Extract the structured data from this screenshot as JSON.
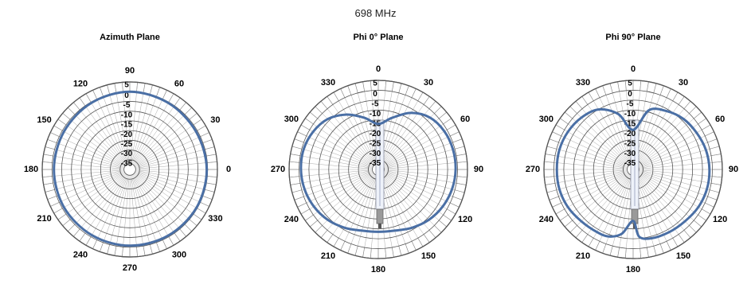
{
  "title": "698 MHz",
  "colors": {
    "trace": "#4a6fa5",
    "grid": "#aaaaaa",
    "ring_dark": "#555555",
    "center_fill": "#e6e6e6"
  },
  "chart_data": [
    {
      "type": "polar",
      "title": "Azimuth Plane",
      "r_range": [
        -40,
        5
      ],
      "r_ticks": [
        5,
        0,
        -5,
        -10,
        -15,
        -20,
        -25,
        -30,
        -35
      ],
      "angle_labels": [
        "90",
        "60",
        "30",
        "0",
        "330",
        "300",
        "270",
        "240",
        "210",
        "180",
        "150",
        "120"
      ],
      "angle_label_positions_deg": [
        90,
        60,
        30,
        0,
        330,
        300,
        270,
        240,
        210,
        180,
        150,
        120
      ],
      "angle_convention": "counterclockwise, 0 at right",
      "series": [
        {
          "angles": [
            0,
            30,
            60,
            90,
            120,
            150,
            180,
            210,
            240,
            270,
            300,
            330
          ],
          "values": [
            -0.5,
            -0.8,
            -0.5,
            0.0,
            -0.5,
            -1.0,
            -1.0,
            -1.0,
            -1.0,
            -0.8,
            -0.7,
            -0.5
          ]
        }
      ]
    },
    {
      "type": "polar",
      "title": "Phi 0° Plane",
      "r_range": [
        -40,
        5
      ],
      "r_ticks": [
        5,
        0,
        -5,
        -10,
        -15,
        -20,
        -25,
        -30,
        -35
      ],
      "angle_labels": [
        "0",
        "30",
        "60",
        "90",
        "120",
        "150",
        "180",
        "210",
        "240",
        "270",
        "300",
        "330"
      ],
      "angle_label_positions_deg": [
        0,
        30,
        60,
        90,
        120,
        150,
        180,
        210,
        240,
        270,
        300,
        330
      ],
      "angle_convention": "clockwise, 0 at top",
      "series": [
        {
          "angles": [
            0,
            15,
            30,
            45,
            60,
            75,
            90,
            105,
            120,
            135,
            150,
            165,
            180,
            195,
            210,
            225,
            240,
            255,
            270,
            285,
            300,
            315,
            330,
            345
          ],
          "values": [
            -17,
            -13,
            -7,
            -3,
            -1.5,
            -1,
            -1,
            -1.5,
            -2.5,
            -4,
            -6,
            -8,
            -8.5,
            -8,
            -6,
            -4,
            -2.5,
            -1.5,
            -1,
            -1,
            -2,
            -4,
            -8,
            -13
          ]
        }
      ]
    },
    {
      "type": "polar",
      "title": "Phi 90° Plane",
      "r_range": [
        -40,
        5
      ],
      "r_ticks": [
        5,
        0,
        -5,
        -10,
        -15,
        -20,
        -25,
        -30,
        -35
      ],
      "angle_labels": [
        "0",
        "30",
        "60",
        "90",
        "120",
        "150",
        "180",
        "210",
        "240",
        "270",
        "300",
        "330"
      ],
      "angle_label_positions_deg": [
        0,
        30,
        60,
        90,
        120,
        150,
        180,
        210,
        240,
        270,
        300,
        330
      ],
      "angle_convention": "clockwise, 0 at top",
      "series": [
        {
          "angles": [
            0,
            15,
            30,
            45,
            60,
            75,
            90,
            105,
            120,
            135,
            150,
            165,
            175,
            180,
            190,
            200,
            210,
            225,
            240,
            255,
            270,
            285,
            300,
            315,
            330,
            345
          ],
          "values": [
            -20,
            -9,
            -6,
            -4,
            -3,
            -2,
            -1.5,
            -1.5,
            -2,
            -3,
            -3.5,
            -4,
            -6,
            -14,
            -7,
            -4,
            -3.5,
            -3,
            -2,
            -1.5,
            -1.5,
            -1.5,
            -2,
            -3,
            -5,
            -11
          ]
        }
      ]
    }
  ]
}
